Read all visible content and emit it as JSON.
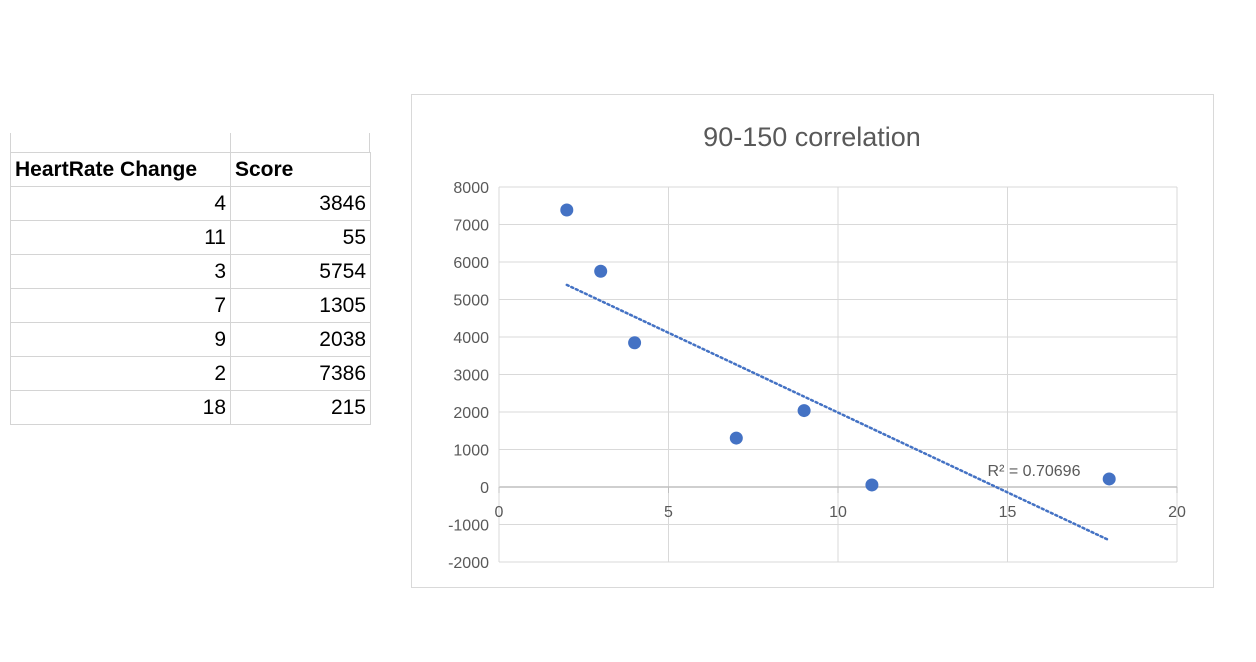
{
  "table": {
    "headers": [
      "HeartRate Change",
      "Score"
    ],
    "rows": [
      [
        "4",
        "3846"
      ],
      [
        "11",
        "55"
      ],
      [
        "3",
        "5754"
      ],
      [
        "7",
        "1305"
      ],
      [
        "9",
        "2038"
      ],
      [
        "2",
        "7386"
      ],
      [
        "18",
        "215"
      ]
    ]
  },
  "chart_data": {
    "type": "scatter",
    "title": "90-150 correlation",
    "xlabel": "",
    "ylabel": "",
    "xlim": [
      0,
      20
    ],
    "ylim": [
      -2000,
      8000
    ],
    "x_ticks": [
      0,
      5,
      10,
      15,
      20
    ],
    "y_ticks": [
      -2000,
      -1000,
      0,
      1000,
      2000,
      3000,
      4000,
      5000,
      6000,
      7000,
      8000
    ],
    "grid": true,
    "legend": "none",
    "series": [
      {
        "x": [
          4,
          11,
          3,
          7,
          9,
          2,
          18
        ],
        "y": [
          3846,
          55,
          5754,
          1305,
          2038,
          7386,
          215
        ],
        "color": "#4472c4"
      }
    ],
    "trendline": {
      "type": "linear",
      "x_range": [
        2,
        18
      ],
      "y_start": 5390,
      "y_end": -1420,
      "color": "#4472c4",
      "style": "dotted",
      "r_squared_label": "R² = 0.70696"
    }
  }
}
